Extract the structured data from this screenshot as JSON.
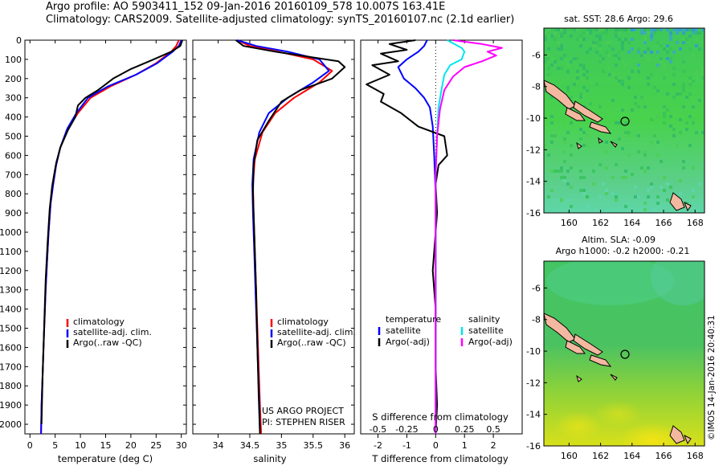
{
  "header": {
    "line1": "Argo profile: AO 5903411_152 09-Jan-2016 20160109_578 10.007S 163.41E",
    "line2": "Climatology: CARS2009. Satellite-adjusted climatology: synTS_20160107.nc (2.1d earlier)"
  },
  "credit": "©IMOS 14-Jan-2016 20:40:31",
  "project": {
    "line1": "US ARGO PROJECT",
    "line2": "PI: STEPHEN RISER"
  },
  "colors": {
    "climatology": "#ff0000",
    "satellite": "#0000ff",
    "argo": "#000000",
    "sal_satellite": "#00e5ee",
    "sal_argo": "#ff00ff",
    "land": "#f4b8a0"
  },
  "chart_data": [
    {
      "type": "line",
      "id": "temperature",
      "xlabel": "temperature (deg C)",
      "ylabel": "",
      "xlim": [
        -1,
        31
      ],
      "ylim": [
        2050,
        0
      ],
      "xticks": [
        0,
        5,
        10,
        15,
        20,
        25,
        30
      ],
      "yticks": [
        0,
        100,
        200,
        300,
        400,
        500,
        600,
        700,
        800,
        900,
        1000,
        1100,
        1200,
        1300,
        1400,
        1500,
        1600,
        1700,
        1800,
        1900,
        2000
      ],
      "legend": [
        "climatology",
        "satellite-adj. clim.",
        "Argo(..raw -QC)"
      ],
      "series": [
        {
          "name": "climatology",
          "color": "#ff0000",
          "x": [
            29.5,
            29.0,
            28.0,
            25.0,
            21.0,
            16.0,
            12.0,
            9.5,
            7.5,
            6.0,
            5.2,
            4.6,
            4.1,
            3.7,
            3.4,
            3.1,
            2.9,
            2.7,
            2.5,
            2.3,
            2.2
          ],
          "y": [
            0,
            30,
            60,
            120,
            180,
            240,
            300,
            380,
            460,
            560,
            650,
            750,
            850,
            1000,
            1150,
            1300,
            1450,
            1600,
            1750,
            1900,
            2050
          ]
        },
        {
          "name": "satellite-adj. clim.",
          "color": "#0000ff",
          "x": [
            30.0,
            29.5,
            28.3,
            25.2,
            21.0,
            15.5,
            11.5,
            9.2,
            7.4,
            6.0,
            5.2,
            4.6,
            4.1,
            3.7,
            3.4,
            3.1,
            2.9,
            2.7,
            2.5,
            2.3,
            2.2
          ],
          "y": [
            0,
            30,
            60,
            120,
            180,
            240,
            300,
            380,
            460,
            560,
            650,
            750,
            850,
            1000,
            1150,
            1300,
            1450,
            1600,
            1750,
            1900,
            2050
          ]
        },
        {
          "name": "Argo(..raw -QC)",
          "color": "#000000",
          "x": [
            30.2,
            29.8,
            28.0,
            24.5,
            20.0,
            16.5,
            13.5,
            11.0,
            9.5,
            9.0,
            7.5,
            6.0,
            5.2,
            4.4,
            3.9,
            3.5,
            3.1,
            2.8,
            2.5,
            2.3
          ],
          "y": [
            0,
            30,
            60,
            100,
            150,
            200,
            260,
            300,
            340,
            400,
            470,
            560,
            640,
            760,
            880,
            1050,
            1250,
            1500,
            1750,
            2000
          ]
        }
      ]
    },
    {
      "type": "line",
      "id": "salinity",
      "xlabel": "salinity",
      "ylabel": "",
      "xlim": [
        33.6,
        36.15
      ],
      "ylim": [
        2050,
        0
      ],
      "xticks": [
        34,
        34.5,
        35,
        35.5,
        36
      ],
      "yticks": [
        0,
        100,
        200,
        300,
        400,
        500,
        600,
        700,
        800,
        900,
        1000,
        1100,
        1200,
        1300,
        1400,
        1500,
        1600,
        1700,
        1800,
        1900,
        2000
      ],
      "legend": [
        "climatology",
        "satellite-adj. clim.",
        "Argo(..raw -QC)"
      ],
      "series": [
        {
          "name": "climatology",
          "color": "#ff0000",
          "x": [
            34.3,
            34.5,
            34.95,
            35.5,
            35.8,
            35.6,
            35.2,
            34.9,
            34.7,
            34.58,
            34.55,
            34.56,
            34.58,
            34.6,
            34.62,
            34.64,
            34.66,
            34.68
          ],
          "y": [
            0,
            30,
            60,
            100,
            160,
            220,
            300,
            380,
            480,
            620,
            750,
            900,
            1100,
            1300,
            1500,
            1700,
            1900,
            2050
          ]
        },
        {
          "name": "satellite-adj. clim.",
          "color": "#0000ff",
          "x": [
            34.3,
            34.6,
            35.1,
            35.6,
            35.75,
            35.5,
            35.1,
            34.8,
            34.65,
            34.56,
            34.54,
            34.55,
            34.57,
            34.59,
            34.61,
            34.63,
            34.65,
            34.66
          ],
          "y": [
            0,
            30,
            60,
            100,
            160,
            220,
            300,
            380,
            480,
            620,
            750,
            900,
            1100,
            1300,
            1500,
            1700,
            1900,
            2050
          ]
        },
        {
          "name": "Argo(..raw -QC)",
          "color": "#000000",
          "x": [
            34.28,
            34.4,
            34.9,
            35.5,
            35.9,
            36.0,
            35.8,
            35.3,
            35.0,
            34.8,
            34.62,
            34.56,
            34.55,
            34.57,
            34.6,
            34.62,
            34.64,
            34.66
          ],
          "y": [
            0,
            30,
            60,
            90,
            110,
            140,
            200,
            260,
            320,
            420,
            520,
            650,
            800,
            1000,
            1300,
            1600,
            1850,
            2050
          ]
        }
      ]
    },
    {
      "type": "line",
      "id": "difference",
      "xlabel": "T difference from climatology",
      "xlabel2": "S difference from climatology",
      "ylabel": "",
      "xlim": [
        -2.6,
        3.0
      ],
      "ylim": [
        2050,
        0
      ],
      "xticks": [
        -2,
        -1,
        0,
        1,
        2
      ],
      "xticks2_values": [
        -0.5,
        -0.25,
        0,
        0.25,
        0.5
      ],
      "xticks2_labels": [
        "-0.5",
        "-0.25",
        "0",
        "0.25",
        "0.5"
      ],
      "legend": {
        "temperature_header": "temperature",
        "salinity_header": "salinity",
        "entries": [
          "satellite",
          "Argo(-adj)",
          "satellite",
          "Argo(-adj)"
        ]
      },
      "series": [
        {
          "name": "satellite",
          "group": "temperature",
          "color": "#0000ff",
          "x": [
            -0.3,
            -0.4,
            -0.6,
            -1.0,
            -1.3,
            -1.1,
            -0.7,
            -0.4,
            -0.2,
            -0.1,
            -0.05,
            0,
            0,
            0,
            0
          ],
          "y": [
            0,
            30,
            60,
            100,
            140,
            200,
            250,
            300,
            350,
            450,
            600,
            800,
            1100,
            1500,
            2050
          ]
        },
        {
          "name": "Argo(-adj)",
          "group": "temperature",
          "color": "#000000",
          "x": [
            -0.7,
            -1.6,
            -1.0,
            -1.9,
            -1.3,
            -2.2,
            -1.6,
            -2.4,
            -1.8,
            -1.9,
            -1.2,
            -0.6,
            0.3,
            0.4,
            0.1,
            0,
            0.05,
            -0.1,
            0,
            0,
            0,
            0.05,
            0
          ],
          "y": [
            0,
            20,
            50,
            70,
            110,
            130,
            180,
            230,
            280,
            320,
            380,
            450,
            500,
            600,
            650,
            750,
            900,
            1200,
            1400,
            1500,
            1700,
            1900,
            2050
          ]
        },
        {
          "name": "satellite",
          "group": "salinity",
          "color": "#00e5ee",
          "x": [
            0.4,
            0.9,
            1.0,
            0.9,
            0.5,
            0.3,
            0.2,
            0.1,
            0.05,
            0,
            0,
            0
          ],
          "y": [
            0,
            40,
            60,
            100,
            130,
            180,
            260,
            350,
            500,
            700,
            1200,
            2050
          ]
        },
        {
          "name": "Argo(-adj)",
          "group": "salinity",
          "color": "#ff00ff",
          "x": [
            0.6,
            1.6,
            2.3,
            1.8,
            2.1,
            1.6,
            1.0,
            0.6,
            0.3,
            0.15,
            0.05,
            0,
            0,
            0
          ],
          "y": [
            0,
            20,
            40,
            60,
            80,
            110,
            140,
            190,
            260,
            360,
            500,
            700,
            1200,
            2050
          ]
        }
      ]
    },
    {
      "type": "heatmap",
      "id": "sst-map",
      "title": "sat. SST: 28.6 Argo: 29.6",
      "xlim": [
        158.4,
        168.6
      ],
      "ylim": [
        -16,
        -4.3
      ],
      "xticks": [
        160,
        162,
        164,
        166,
        168
      ],
      "yticks": [
        -6,
        -8,
        -10,
        -12,
        -14,
        -16
      ],
      "argo_position": [
        163.41,
        -10.007
      ]
    },
    {
      "type": "heatmap",
      "id": "sla-map",
      "title": "Altim. SLA: -0.09",
      "subtitle": "Argo h1000: -0.2 h2000: -0.21",
      "xlim": [
        158.4,
        168.6
      ],
      "ylim": [
        -16,
        -4.3
      ],
      "xticks": [
        160,
        162,
        164,
        166,
        168
      ],
      "yticks": [
        -6,
        -8,
        -10,
        -12,
        -14,
        -16
      ],
      "argo_position": [
        163.41,
        -10.007
      ]
    }
  ]
}
